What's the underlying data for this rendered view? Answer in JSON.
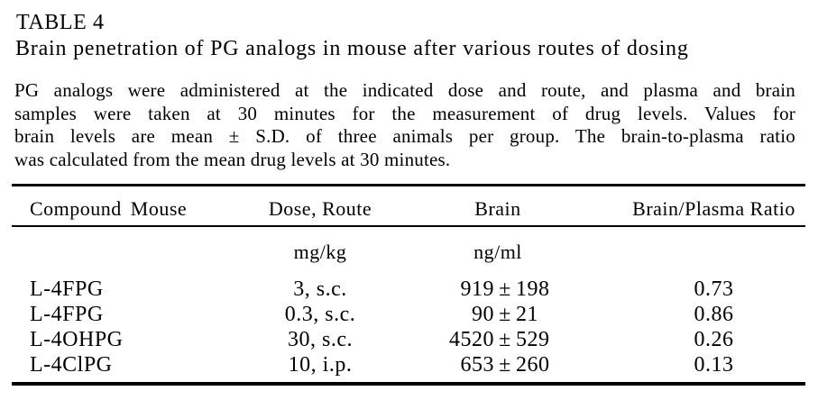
{
  "page": {
    "table_label": "TABLE 4",
    "title": "Brain penetration of PG analogs in mouse after various routes of dosing",
    "description_lines": [
      "PG analogs were administered at the indicated dose and route, and plasma and brain",
      "samples were taken at 30 minutes for the measurement of drug levels. Values for",
      "brain levels are mean ± S.D. of three animals per group. The brain-to-plasma ratio",
      "was calculated from the mean drug levels at 30 minutes."
    ]
  },
  "table": {
    "columns": [
      "Compound Mouse",
      "Dose, Route",
      "Brain",
      "Brain/Plasma Ratio"
    ],
    "units": {
      "dose": "mg/kg",
      "brain": "ng/ml"
    },
    "rows": [
      {
        "compound": "L-4FPG",
        "dose": "3, s.c.",
        "brain_value": "919",
        "pm": "±",
        "brain_sd": "198",
        "ratio": "0.73"
      },
      {
        "compound": "L-4FPG",
        "dose": "0.3, s.c.",
        "brain_value": "90",
        "pm": "±",
        "brain_sd": "21",
        "ratio": "0.86"
      },
      {
        "compound": "L-4OHPG",
        "dose": "30, s.c.",
        "brain_value": "4520",
        "pm": "±",
        "brain_sd": "529",
        "ratio": "0.26"
      },
      {
        "compound": "L-4ClPG",
        "dose": "10, i.p.",
        "brain_value": "653",
        "pm": "±",
        "brain_sd": "260",
        "ratio": "0.13"
      }
    ],
    "colors": {
      "text": "#000000",
      "background": "#ffffff",
      "rule": "#000000"
    }
  }
}
